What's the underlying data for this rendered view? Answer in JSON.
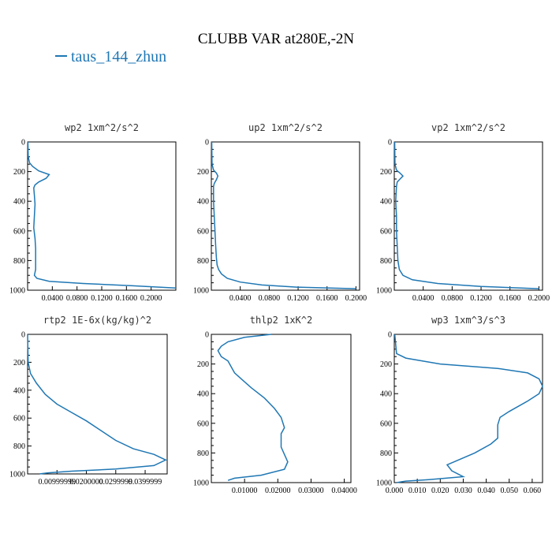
{
  "figure": {
    "title": "CLUBB VAR at280E,-2N",
    "legend_label": "taus_144_zhun",
    "line_color": "#1f77b4"
  },
  "chart_data": [
    {
      "type": "line",
      "title": "wp2  1xm^2/s^2",
      "xlim": [
        0,
        0.24
      ],
      "ylim": [
        1000,
        0
      ],
      "xticks": [
        "0.0400",
        "0.0800",
        "0.1200",
        "0.1600",
        "0.2000"
      ],
      "xtick_values": [
        0.04,
        0.08,
        0.12,
        0.16,
        0.2
      ],
      "yticks": [
        "0",
        "200",
        "400",
        "600",
        "800",
        "1000"
      ],
      "ytick_values": [
        0,
        200,
        400,
        600,
        800,
        1000
      ],
      "series": [
        {
          "x": [
            0.0005,
            0.001,
            0.003,
            0.008,
            0.018,
            0.035,
            0.03,
            0.018,
            0.012,
            0.01,
            0.011,
            0.012,
            0.011,
            0.01,
            0.012,
            0.013,
            0.013,
            0.013,
            0.012,
            0.011,
            0.015,
            0.035,
            0.09,
            0.17,
            0.24
          ],
          "y": [
            0,
            100,
            140,
            165,
            195,
            220,
            245,
            270,
            290,
            310,
            360,
            420,
            500,
            580,
            650,
            720,
            800,
            860,
            880,
            900,
            920,
            940,
            955,
            970,
            985
          ]
        }
      ]
    },
    {
      "type": "line",
      "title": "up2  1xm^2/s^2",
      "xlim": [
        0,
        0.205
      ],
      "ylim": [
        1000,
        0
      ],
      "xticks": [
        "0.0400",
        "0.0800",
        "0.1200",
        "0.1600",
        "0.2000"
      ],
      "xtick_values": [
        0.04,
        0.08,
        0.12,
        0.16,
        0.2
      ],
      "yticks": [
        "0",
        "200",
        "400",
        "600",
        "800",
        "1000"
      ],
      "ytick_values": [
        0,
        200,
        400,
        600,
        800,
        1000
      ],
      "series": [
        {
          "x": [
            0.0005,
            0.001,
            0.003,
            0.007,
            0.009,
            0.007,
            0.004,
            0.003,
            0.003,
            0.004,
            0.005,
            0.006,
            0.007,
            0.008,
            0.01,
            0.014,
            0.022,
            0.04,
            0.07,
            0.12,
            0.2
          ],
          "y": [
            0,
            150,
            190,
            210,
            230,
            255,
            280,
            300,
            400,
            500,
            600,
            700,
            780,
            830,
            860,
            890,
            920,
            945,
            965,
            980,
            990
          ]
        }
      ]
    },
    {
      "type": "line",
      "title": "vp2  1xm^2/s^2",
      "xlim": [
        0,
        0.205
      ],
      "ylim": [
        1000,
        0
      ],
      "xticks": [
        "0.0400",
        "0.0800",
        "0.1200",
        "0.1600",
        "0.2000"
      ],
      "xtick_values": [
        0.04,
        0.08,
        0.12,
        0.16,
        0.2
      ],
      "yticks": [
        "0",
        "200",
        "400",
        "600",
        "800",
        "1000"
      ],
      "ytick_values": [
        0,
        200,
        400,
        600,
        800,
        1000
      ],
      "series": [
        {
          "x": [
            0.0005,
            0.001,
            0.003,
            0.008,
            0.012,
            0.008,
            0.004,
            0.003,
            0.002,
            0.003,
            0.003,
            0.004,
            0.005,
            0.007,
            0.012,
            0.025,
            0.06,
            0.12,
            0.2
          ],
          "y": [
            0,
            150,
            190,
            210,
            230,
            250,
            270,
            300,
            400,
            500,
            600,
            700,
            800,
            860,
            900,
            930,
            955,
            975,
            990
          ]
        }
      ]
    },
    {
      "type": "line",
      "title": "rtp2  1E-6x(kg/kg)^2",
      "xlim": [
        0,
        0.0475
      ],
      "ylim": [
        1000,
        0
      ],
      "xticks": [
        "0.00999999",
        "0.0200000",
        "0.0299999",
        "0.0399999"
      ],
      "xtick_values": [
        0.01,
        0.02,
        0.03,
        0.04
      ],
      "yticks": [
        "0",
        "200",
        "400",
        "600",
        "800",
        "1000"
      ],
      "ytick_values": [
        0,
        200,
        400,
        600,
        800,
        1000
      ],
      "series": [
        {
          "x": [
            0.0,
            0.0002,
            0.001,
            0.003,
            0.006,
            0.01,
            0.015,
            0.02,
            0.025,
            0.03,
            0.036,
            0.043,
            0.047,
            0.043,
            0.03,
            0.015,
            0.007,
            0.004
          ],
          "y": [
            0,
            200,
            280,
            350,
            430,
            500,
            560,
            620,
            690,
            760,
            820,
            860,
            900,
            940,
            965,
            980,
            992,
            1000
          ]
        }
      ]
    },
    {
      "type": "line",
      "title": "thlp2  1xK^2",
      "xlim": [
        0,
        0.042
      ],
      "ylim": [
        1000,
        0
      ],
      "xticks": [
        "0.01000",
        "0.02000",
        "0.03000",
        "0.04000"
      ],
      "xtick_values": [
        0.01,
        0.02,
        0.03,
        0.04
      ],
      "yticks": [
        "0",
        "200",
        "400",
        "600",
        "800",
        "1000"
      ],
      "ytick_values": [
        0,
        200,
        400,
        600,
        800,
        1000
      ],
      "series": [
        {
          "x": [
            0.018,
            0.01,
            0.005,
            0.003,
            0.002,
            0.003,
            0.005,
            0.006,
            0.007,
            0.009,
            0.012,
            0.016,
            0.019,
            0.021,
            0.022,
            0.021,
            0.021,
            0.021,
            0.022,
            0.023,
            0.022,
            0.015,
            0.007,
            0.005
          ],
          "y": [
            0,
            20,
            50,
            80,
            110,
            150,
            180,
            220,
            260,
            300,
            360,
            430,
            500,
            560,
            630,
            670,
            720,
            760,
            810,
            860,
            910,
            950,
            970,
            985
          ]
        }
      ]
    },
    {
      "type": "line",
      "title": "wp3  1xm^3/s^3",
      "xlim": [
        0,
        0.0645
      ],
      "ylim": [
        1000,
        0
      ],
      "xticks": [
        "0.000",
        "0.010",
        "0.020",
        "0.030",
        "0.040",
        "0.050",
        "0.060"
      ],
      "xtick_values": [
        0,
        0.01,
        0.02,
        0.03,
        0.04,
        0.05,
        0.06
      ],
      "yticks": [
        "0",
        "200",
        "400",
        "600",
        "800",
        "1000"
      ],
      "ytick_values": [
        0,
        200,
        400,
        600,
        800,
        1000
      ],
      "series": [
        {
          "x": [
            0.0002,
            0.001,
            0.005,
            0.02,
            0.045,
            0.058,
            0.063,
            0.0645,
            0.063,
            0.058,
            0.05,
            0.046,
            0.045,
            0.045,
            0.042,
            0.035,
            0.026,
            0.023,
            0.025,
            0.03,
            0.015,
            0.005,
            0.001
          ],
          "y": [
            0,
            130,
            160,
            200,
            230,
            260,
            300,
            350,
            400,
            450,
            520,
            560,
            610,
            700,
            740,
            800,
            860,
            880,
            920,
            960,
            980,
            990,
            1000
          ]
        }
      ]
    }
  ]
}
